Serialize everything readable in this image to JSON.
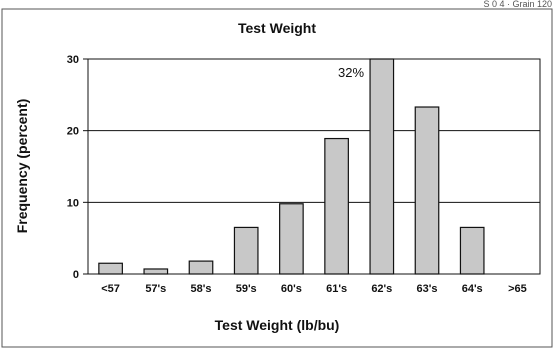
{
  "corner_text": "S 0 4 · Grain 120",
  "chart_data": {
    "type": "bar",
    "title": "Test Weight",
    "xlabel": "Test Weight (lb/bu)",
    "ylabel": "Frequency (percent)",
    "categories": [
      "<57",
      "57's",
      "58's",
      "59's",
      "60's",
      "61's",
      "62's",
      "63's",
      "64's",
      ">65"
    ],
    "values": [
      1.5,
      0.7,
      1.8,
      6.5,
      9.8,
      18.9,
      32,
      23.3,
      6.5,
      0
    ],
    "ylim": [
      0,
      30
    ],
    "yticks": [
      "0",
      "10",
      "20",
      "30"
    ],
    "grid": true,
    "legend": "none",
    "annotations": [
      {
        "text": "32%",
        "category": "62's"
      }
    ],
    "bar_color": "#c8c8c8",
    "bar_edge_color": "#111111"
  }
}
